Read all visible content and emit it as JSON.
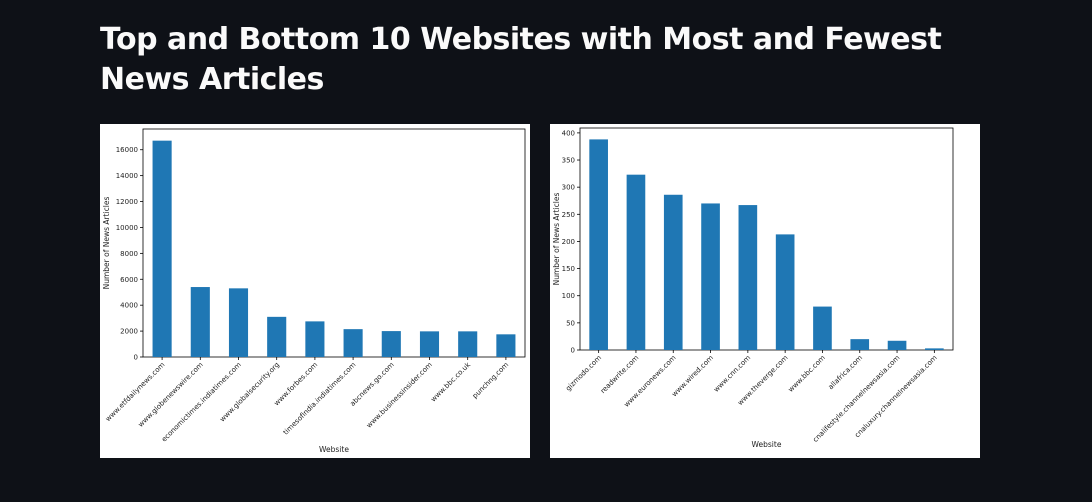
{
  "header": {
    "title": "Top and Bottom 10 Websites with Most and Fewest News Articles"
  },
  "chart_data": [
    {
      "type": "bar",
      "title": "",
      "xlabel": "Website",
      "ylabel": "Number of News Articles",
      "ylim": [
        0,
        17600
      ],
      "yticks": [
        0,
        2000,
        4000,
        6000,
        8000,
        10000,
        12000,
        14000,
        16000
      ],
      "bar_color": "#1f77b4",
      "grid": false,
      "categories": [
        "www.etfdailynews.com",
        "www.globenewswire.com",
        "economictimes.indiatimes.com",
        "www.globalsecurity.org",
        "www.forbes.com",
        "timesofindia.indiatimes.com",
        "abcnews.go.com",
        "www.businessinsider.com",
        "www.bbc.co.uk",
        "punchng.com"
      ],
      "values": [
        16700,
        5400,
        5300,
        3100,
        2750,
        2150,
        2000,
        1980,
        1980,
        1750
      ]
    },
    {
      "type": "bar",
      "title": "",
      "xlabel": "Website",
      "ylabel": "Number of News Articles",
      "ylim": [
        0,
        409
      ],
      "yticks": [
        0,
        50,
        100,
        150,
        200,
        250,
        300,
        350,
        400
      ],
      "bar_color": "#1f77b4",
      "grid": false,
      "categories": [
        "gizmodo.com",
        "readwrite.com",
        "www.euronews.com",
        "www.wired.com",
        "www.cnn.com",
        "www.theverge.com",
        "www.bbc.com",
        "allafrica.com",
        "cnalifestyle.channelnewsasia.com",
        "cnaluxury.channelnewsasia.com"
      ],
      "values": [
        388,
        323,
        286,
        270,
        267,
        213,
        80,
        20,
        17,
        3
      ]
    }
  ]
}
